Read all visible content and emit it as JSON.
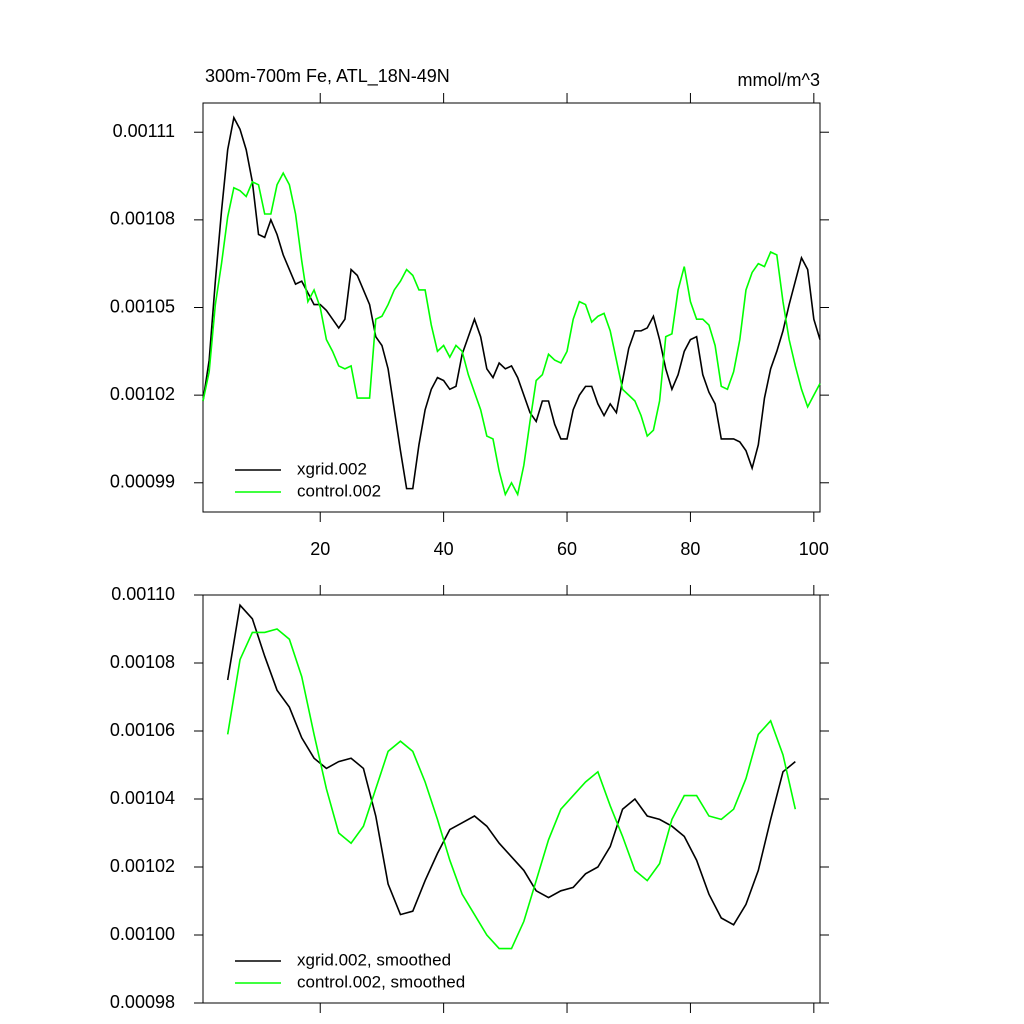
{
  "chart_data": [
    {
      "type": "line",
      "title": "300m-700m Fe, ATL_18N-49N",
      "units": "mmol/m^3",
      "x": [
        1,
        2,
        3,
        4,
        5,
        6,
        7,
        8,
        9,
        10,
        11,
        12,
        13,
        14,
        15,
        16,
        17,
        18,
        19,
        20,
        21,
        22,
        23,
        24,
        25,
        26,
        27,
        28,
        29,
        30,
        31,
        32,
        33,
        34,
        35,
        36,
        37,
        38,
        39,
        40,
        41,
        42,
        43,
        44,
        45,
        46,
        47,
        48,
        49,
        50,
        51,
        52,
        53,
        54,
        55,
        56,
        57,
        58,
        59,
        60,
        61,
        62,
        63,
        64,
        65,
        66,
        67,
        68,
        69,
        70,
        71,
        72,
        73,
        74,
        75,
        76,
        77,
        78,
        79,
        80,
        81,
        82,
        83,
        84,
        85,
        86,
        87,
        88,
        89,
        90,
        91,
        92,
        93,
        94,
        95,
        96,
        97,
        98,
        99,
        100,
        101
      ],
      "series": [
        {
          "name": "xgrid.002",
          "color": "#000000",
          "values": [
            0.001018,
            0.001032,
            0.001059,
            0.001083,
            0.001104,
            0.001115,
            0.001111,
            0.001104,
            0.001093,
            0.001075,
            0.001074,
            0.00108,
            0.001075,
            0.001068,
            0.001063,
            0.001058,
            0.001059,
            0.001055,
            0.001051,
            0.001051,
            0.001049,
            0.001046,
            0.001043,
            0.001046,
            0.001063,
            0.001061,
            0.001056,
            0.001051,
            0.00104,
            0.001037,
            0.001029,
            0.001015,
            0.001001,
            0.000988,
            0.000988,
            0.001003,
            0.001015,
            0.001022,
            0.001026,
            0.001025,
            0.001022,
            0.001023,
            0.001034,
            0.00104,
            0.001046,
            0.00104,
            0.001029,
            0.001026,
            0.001031,
            0.001029,
            0.00103,
            0.001026,
            0.00102,
            0.001014,
            0.001011,
            0.001018,
            0.001018,
            0.00101,
            0.001005,
            0.001005,
            0.001015,
            0.00102,
            0.001023,
            0.001023,
            0.001017,
            0.001013,
            0.001017,
            0.001014,
            0.001025,
            0.001036,
            0.001042,
            0.001042,
            0.001043,
            0.001047,
            0.001039,
            0.001029,
            0.001022,
            0.001027,
            0.001035,
            0.001039,
            0.00104,
            0.001027,
            0.001021,
            0.001017,
            0.001005,
            0.001005,
            0.001005,
            0.001004,
            0.001001,
            0.000995,
            0.001003,
            0.001019,
            0.001029,
            0.001035,
            0.001042,
            0.001051,
            0.001059,
            0.001067,
            0.001063,
            0.001046,
            0.001039
          ]
        },
        {
          "name": "control.002",
          "color": "#00ff00",
          "values": [
            0.001018,
            0.001028,
            0.001051,
            0.001065,
            0.001081,
            0.001091,
            0.00109,
            0.001088,
            0.001093,
            0.001092,
            0.001082,
            0.001082,
            0.001092,
            0.001096,
            0.001092,
            0.001082,
            0.001066,
            0.001052,
            0.001056,
            0.00105,
            0.001039,
            0.001035,
            0.00103,
            0.001029,
            0.00103,
            0.001019,
            0.001019,
            0.001019,
            0.001046,
            0.001047,
            0.001051,
            0.001056,
            0.001059,
            0.001063,
            0.001061,
            0.001056,
            0.001056,
            0.001044,
            0.001035,
            0.001037,
            0.001033,
            0.001037,
            0.001035,
            0.001027,
            0.001021,
            0.001015,
            0.001006,
            0.001005,
            0.000994,
            0.000986,
            0.00099,
            0.000986,
            0.000996,
            0.001011,
            0.001025,
            0.001027,
            0.001034,
            0.001032,
            0.001031,
            0.001035,
            0.001046,
            0.001052,
            0.001051,
            0.001045,
            0.001047,
            0.001048,
            0.001042,
            0.001032,
            0.001022,
            0.00102,
            0.001018,
            0.001013,
            0.001006,
            0.001008,
            0.001018,
            0.00104,
            0.001041,
            0.001056,
            0.001064,
            0.001052,
            0.001046,
            0.001046,
            0.001044,
            0.001037,
            0.001023,
            0.001022,
            0.001028,
            0.001039,
            0.001056,
            0.001062,
            0.001065,
            0.001064,
            0.001069,
            0.001068,
            0.001052,
            0.001039,
            0.00103,
            0.001022,
            0.001016,
            0.00102,
            0.001024
          ]
        }
      ],
      "xlim": [
        1,
        101
      ],
      "xticks": [
        20,
        40,
        60,
        80,
        100
      ],
      "ylim": [
        0.00098,
        0.00112
      ],
      "yticks": [
        0.00099,
        0.00102,
        0.00105,
        0.00108,
        0.00111
      ],
      "legend": "lower left",
      "show_xtick_labels": true
    },
    {
      "type": "line",
      "x": [
        5,
        7,
        9,
        11,
        13,
        15,
        17,
        19,
        21,
        23,
        25,
        27,
        29,
        31,
        33,
        35,
        37,
        39,
        41,
        43,
        45,
        47,
        49,
        51,
        53,
        55,
        57,
        59,
        61,
        63,
        65,
        67,
        69,
        71,
        73,
        75,
        77,
        79,
        81,
        83,
        85,
        87,
        89,
        91,
        93,
        95,
        97
      ],
      "series": [
        {
          "name": "xgrid.002, smoothed",
          "color": "#000000",
          "values": [
            0.001075,
            0.001097,
            0.001093,
            0.001082,
            0.001072,
            0.001067,
            0.001058,
            0.001052,
            0.001049,
            0.001051,
            0.001052,
            0.001049,
            0.001035,
            0.001015,
            0.001006,
            0.001007,
            0.001016,
            0.001024,
            0.001031,
            0.001033,
            0.001035,
            0.001032,
            0.001027,
            0.001023,
            0.001019,
            0.001013,
            0.001011,
            0.001013,
            0.001014,
            0.001018,
            0.00102,
            0.001026,
            0.001037,
            0.00104,
            0.001035,
            0.001034,
            0.001032,
            0.001029,
            0.001022,
            0.001012,
            0.001005,
            0.001003,
            0.001009,
            0.001019,
            0.001034,
            0.001048,
            0.001051
          ]
        },
        {
          "name": "control.002, smoothed",
          "color": "#00ff00",
          "values": [
            0.001059,
            0.001081,
            0.001089,
            0.001089,
            0.00109,
            0.001087,
            0.001076,
            0.001059,
            0.001043,
            0.00103,
            0.001027,
            0.001032,
            0.001043,
            0.001054,
            0.001057,
            0.001054,
            0.001045,
            0.001034,
            0.001022,
            0.001012,
            0.001006,
            0.001,
            0.000996,
            0.000996,
            0.001004,
            0.001016,
            0.001028,
            0.001037,
            0.001041,
            0.001045,
            0.001048,
            0.001038,
            0.001029,
            0.001019,
            0.001016,
            0.001021,
            0.001034,
            0.001041,
            0.001041,
            0.001035,
            0.001034,
            0.001037,
            0.001046,
            0.001059,
            0.001063,
            0.001053,
            0.001037
          ]
        }
      ],
      "xlim": [
        1,
        101
      ],
      "xticks": [
        20,
        40,
        60,
        80,
        100
      ],
      "ylim": [
        0.00098,
        0.0011
      ],
      "yticks": [
        0.00098,
        {
          "value": 0.001,
          "label": "0.00100"
        },
        0.00102,
        0.00104,
        0.00106,
        0.00108,
        {
          "value": 0.0011,
          "label": "0.00110"
        }
      ],
      "legend": "lower left",
      "show_xtick_labels": false
    }
  ]
}
